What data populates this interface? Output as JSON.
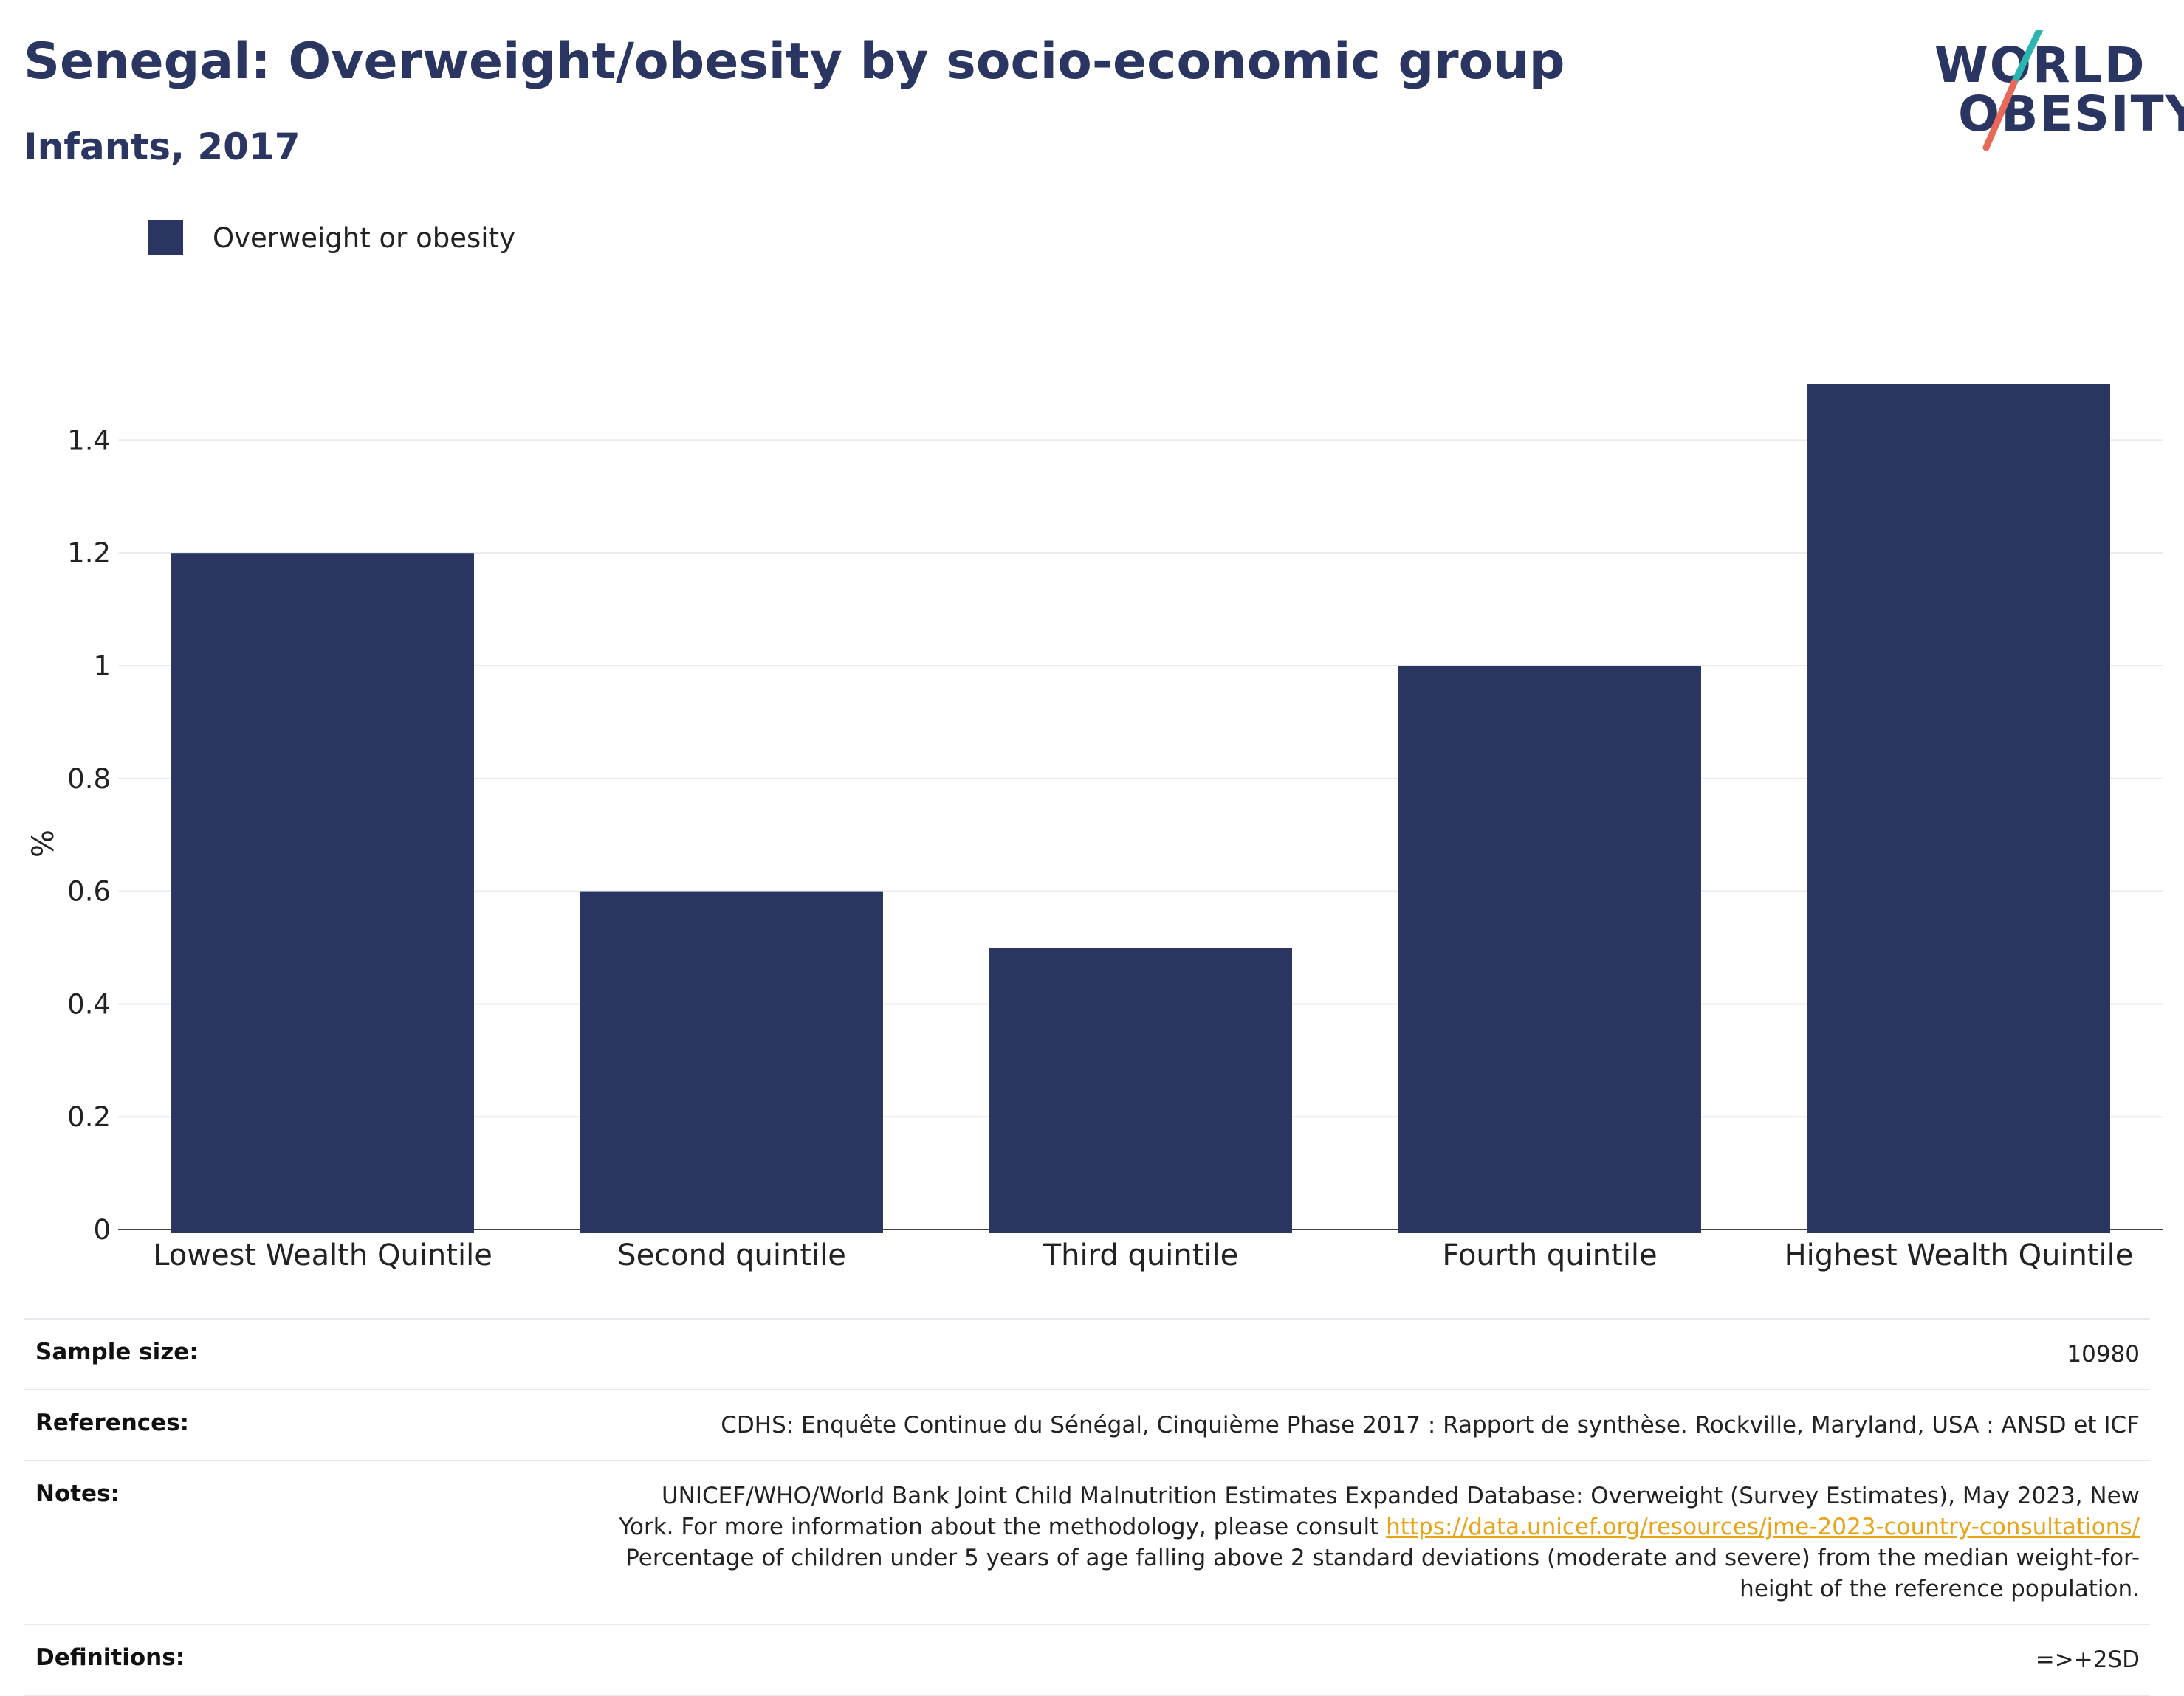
{
  "header": {
    "title": "Senegal: Overweight/obesity by socio-economic group",
    "subtitle": "Infants, 2017"
  },
  "logo": {
    "line1": "WORLD",
    "line2": "OBESITY",
    "accent_teal": "#2bb5b0",
    "accent_coral": "#e8685a"
  },
  "legend": {
    "label": "Overweight or obesity",
    "color": "#2a3561"
  },
  "chart_data": {
    "type": "bar",
    "categories": [
      "Lowest Wealth Quintile",
      "Second quintile",
      "Third quintile",
      "Fourth quintile",
      "Highest Wealth Quintile"
    ],
    "series": [
      {
        "name": "Overweight or obesity",
        "values": [
          1.2,
          0.6,
          0.5,
          1.0,
          1.5
        ],
        "color": "#2a3561"
      }
    ],
    "ylabel": "%",
    "yticks": [
      "0",
      "0.2",
      "0.4",
      "0.6",
      "0.8",
      "1",
      "1.2",
      "1.4"
    ],
    "ylim": [
      0,
      1.5
    ],
    "grid": true,
    "legend_position": "top-left"
  },
  "info": {
    "sample_size_label": "Sample size:",
    "sample_size_value": "10980",
    "references_label": "References:",
    "references_value": "CDHS: Enquête Continue du Sénégal, Cinquième Phase 2017 : Rapport de synthèse. Rockville, Maryland, USA : ANSD et ICF",
    "notes_label": "Notes:",
    "notes_line1": "UNICEF/WHO/World Bank Joint Child Malnutrition Estimates Expanded Database: Overweight (Survey Estimates), May 2023, New",
    "notes_line2_prefix": "York. For more information about the methodology, please consult ",
    "notes_link": "https://data.unicef.org/resources/jme-2023-country-consultations/",
    "notes_line3": "Percentage of children under 5 years of age falling above 2 standard deviations (moderate and severe) from the median weight-for-",
    "notes_line4": "height of the reference population.",
    "definitions_label": "Definitions:",
    "definitions_value": "=>+2SD"
  }
}
